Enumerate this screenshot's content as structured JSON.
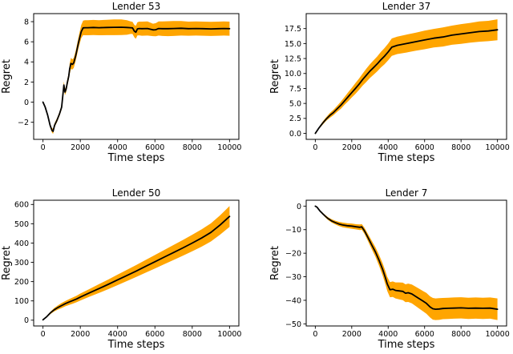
{
  "figure": {
    "background": "#ffffff",
    "grid": "2x2 subplots"
  },
  "chart_data": [
    {
      "type": "line",
      "title": "Lender 53",
      "xlabel": "Time steps",
      "ylabel": "Regret",
      "line_color": "#000000",
      "band_color": "#ffa500",
      "legend_position": "none",
      "grid_on": false,
      "xlim": [
        -500,
        10500
      ],
      "ylim": [
        -3.7,
        8.8
      ],
      "xticks": [
        0,
        2000,
        4000,
        6000,
        8000,
        10000
      ],
      "xtick_labels": [
        "0",
        "2000",
        "4000",
        "6000",
        "8000",
        "10000"
      ],
      "yticks": [
        -2,
        0,
        2,
        4,
        6,
        8
      ],
      "ytick_labels": [
        "−2",
        "0",
        "2",
        "4",
        "6",
        "8"
      ],
      "x": [
        0,
        120,
        250,
        380,
        480,
        540,
        620,
        750,
        880,
        1000,
        1060,
        1120,
        1180,
        1240,
        1300,
        1380,
        1430,
        1500,
        1580,
        1650,
        1750,
        1900,
        2050,
        2150,
        2250,
        2400,
        2700,
        3000,
        3400,
        3800,
        4200,
        4500,
        4700,
        4800,
        4900,
        4980,
        5060,
        5150,
        5300,
        5600,
        5900,
        6050,
        6200,
        6400,
        6700,
        7000,
        7400,
        7800,
        8200,
        8600,
        9000,
        9400,
        9700,
        10000
      ],
      "y": [
        0,
        -0.5,
        -1.3,
        -2.3,
        -2.8,
        -2.9,
        -2.3,
        -1.8,
        -1.2,
        -0.5,
        0.6,
        1.7,
        1.0,
        1.3,
        1.9,
        2.6,
        3.3,
        3.85,
        3.75,
        3.9,
        4.6,
        5.9,
        7.0,
        7.38,
        7.4,
        7.4,
        7.42,
        7.4,
        7.42,
        7.44,
        7.45,
        7.42,
        7.4,
        7.38,
        7.05,
        6.95,
        7.28,
        7.32,
        7.3,
        7.32,
        7.18,
        7.2,
        7.32,
        7.3,
        7.3,
        7.32,
        7.34,
        7.3,
        7.32,
        7.3,
        7.28,
        7.3,
        7.32,
        7.3
      ],
      "band_half_width": [
        0.05,
        0.1,
        0.15,
        0.18,
        0.22,
        0.25,
        0.2,
        0.2,
        0.2,
        0.22,
        0.28,
        0.35,
        0.3,
        0.3,
        0.32,
        0.35,
        0.5,
        0.55,
        0.5,
        0.5,
        0.5,
        0.55,
        0.65,
        0.72,
        0.75,
        0.75,
        0.75,
        0.75,
        0.76,
        0.78,
        0.78,
        0.72,
        0.62,
        0.6,
        0.62,
        0.65,
        0.65,
        0.68,
        0.7,
        0.7,
        0.62,
        0.65,
        0.7,
        0.72,
        0.74,
        0.74,
        0.72,
        0.7,
        0.7,
        0.7,
        0.7,
        0.7,
        0.7,
        0.7
      ]
    },
    {
      "type": "line",
      "title": "Lender 37",
      "xlabel": "Time steps",
      "ylabel": "Regret",
      "line_color": "#000000",
      "band_color": "#ffa500",
      "legend_position": "none",
      "grid_on": false,
      "xlim": [
        -500,
        10500
      ],
      "ylim": [
        -1.0,
        20.0
      ],
      "xticks": [
        0,
        2000,
        4000,
        6000,
        8000,
        10000
      ],
      "xtick_labels": [
        "0",
        "2000",
        "4000",
        "6000",
        "8000",
        "10000"
      ],
      "yticks": [
        0.0,
        2.5,
        5.0,
        7.5,
        10.0,
        12.5,
        15.0,
        17.5
      ],
      "ytick_labels": [
        "0.0",
        "2.5",
        "5.0",
        "7.5",
        "10.0",
        "12.5",
        "15.0",
        "17.5"
      ],
      "x": [
        0,
        200,
        400,
        600,
        800,
        1000,
        1200,
        1400,
        1600,
        1800,
        2000,
        2200,
        2400,
        2600,
        2800,
        3000,
        3200,
        3400,
        3600,
        3800,
        4000,
        4200,
        4500,
        5000,
        5500,
        6000,
        6500,
        7000,
        7500,
        8000,
        8500,
        9000,
        9500,
        10000
      ],
      "y": [
        0,
        0.9,
        1.7,
        2.4,
        3.0,
        3.5,
        4.1,
        4.7,
        5.4,
        6.1,
        6.8,
        7.5,
        8.2,
        9.0,
        9.7,
        10.4,
        11.0,
        11.6,
        12.3,
        12.9,
        13.6,
        14.4,
        14.7,
        15.0,
        15.3,
        15.6,
        15.9,
        16.1,
        16.4,
        16.6,
        16.8,
        17.0,
        17.1,
        17.3
      ],
      "band_half_width": [
        0.05,
        0.15,
        0.25,
        0.3,
        0.4,
        0.45,
        0.5,
        0.6,
        0.65,
        0.75,
        0.8,
        0.9,
        0.95,
        1.0,
        1.1,
        1.15,
        1.2,
        1.25,
        1.3,
        1.35,
        1.4,
        1.45,
        1.45,
        1.5,
        1.5,
        1.55,
        1.55,
        1.6,
        1.6,
        1.65,
        1.65,
        1.7,
        1.7,
        1.75
      ]
    },
    {
      "type": "line",
      "title": "Lender 50",
      "xlabel": "Time steps",
      "ylabel": "Regret",
      "line_color": "#000000",
      "band_color": "#ffa500",
      "legend_position": "none",
      "grid_on": false,
      "xlim": [
        -500,
        10500
      ],
      "ylim": [
        -30,
        622
      ],
      "xticks": [
        0,
        2000,
        4000,
        6000,
        8000,
        10000
      ],
      "xtick_labels": [
        "0",
        "2000",
        "4000",
        "6000",
        "8000",
        "10000"
      ],
      "yticks": [
        0,
        100,
        200,
        300,
        400,
        500,
        600
      ],
      "ytick_labels": [
        "0",
        "100",
        "200",
        "300",
        "400",
        "500",
        "600"
      ],
      "x": [
        0,
        200,
        400,
        600,
        800,
        1000,
        1200,
        1400,
        1600,
        1800,
        2000,
        2500,
        3000,
        3500,
        4000,
        4500,
        5000,
        5500,
        6000,
        6500,
        7000,
        7500,
        8000,
        8500,
        9000,
        9500,
        10000
      ],
      "y": [
        2,
        18,
        38,
        54,
        66,
        76,
        86,
        94,
        102,
        110,
        120,
        142,
        164,
        186,
        209,
        232,
        255,
        279,
        303,
        327,
        351,
        375,
        400,
        426,
        455,
        494,
        538
      ],
      "band_half_width": [
        2,
        4,
        6,
        9,
        11,
        13,
        14,
        15,
        16,
        17,
        18,
        20,
        23,
        25,
        27,
        29,
        31,
        33,
        35,
        37,
        39,
        41,
        43,
        45,
        47,
        50,
        54
      ]
    },
    {
      "type": "line",
      "title": "Lender 7",
      "xlabel": "Time steps",
      "ylabel": "Regret",
      "line_color": "#000000",
      "band_color": "#ffa500",
      "legend_position": "none",
      "grid_on": false,
      "xlim": [
        -500,
        10500
      ],
      "ylim": [
        -50.9,
        2.5
      ],
      "xticks": [
        0,
        2000,
        4000,
        6000,
        8000,
        10000
      ],
      "xtick_labels": [
        "0",
        "2000",
        "4000",
        "6000",
        "8000",
        "10000"
      ],
      "yticks": [
        0,
        -10,
        -20,
        -30,
        -40,
        -50
      ],
      "ytick_labels": [
        "0",
        "−10",
        "−20",
        "−30",
        "−40",
        "−50"
      ],
      "x": [
        0,
        100,
        250,
        400,
        550,
        700,
        900,
        1100,
        1300,
        1500,
        1750,
        2000,
        2250,
        2450,
        2550,
        2700,
        2900,
        3100,
        3300,
        3500,
        3700,
        3850,
        3950,
        4100,
        4250,
        4400,
        4600,
        4800,
        4950,
        5100,
        5300,
        5500,
        5700,
        5900,
        6100,
        6300,
        6450,
        6600,
        6800,
        7000,
        7300,
        7600,
        8000,
        8400,
        8800,
        9200,
        9600,
        10000
      ],
      "y": [
        0,
        -0.5,
        -2.0,
        -3.2,
        -4.3,
        -5.3,
        -6.3,
        -7.0,
        -7.6,
        -8.0,
        -8.3,
        -8.5,
        -8.8,
        -9.0,
        -8.8,
        -10.5,
        -13.5,
        -16.5,
        -19.5,
        -23.0,
        -27.0,
        -30.5,
        -33.0,
        -35.5,
        -35.3,
        -35.8,
        -36.0,
        -36.2,
        -37.0,
        -36.8,
        -37.3,
        -38.3,
        -39.3,
        -40.3,
        -41.3,
        -42.8,
        -43.6,
        -43.8,
        -43.7,
        -43.5,
        -43.4,
        -43.3,
        -43.2,
        -43.4,
        -43.3,
        -43.4,
        -43.3,
        -43.8
      ],
      "band_half_width": [
        0.1,
        0.2,
        0.3,
        0.4,
        0.5,
        0.6,
        0.7,
        0.8,
        0.9,
        1.0,
        1.0,
        1.1,
        1.1,
        1.2,
        1.2,
        1.3,
        1.5,
        1.8,
        2.0,
        2.3,
        2.6,
        2.8,
        3.0,
        3.2,
        3.3,
        3.4,
        3.6,
        3.7,
        3.8,
        3.9,
        4.0,
        4.1,
        4.2,
        4.3,
        4.4,
        4.5,
        4.6,
        4.6,
        4.6,
        4.5,
        4.5,
        4.5,
        4.5,
        4.5,
        4.5,
        4.5,
        4.5,
        4.6
      ]
    }
  ]
}
